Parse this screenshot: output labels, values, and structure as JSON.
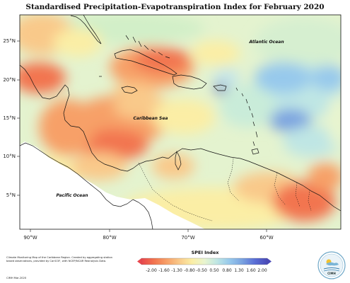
{
  "title": "Standardised Precipitation-Evapotranspiration Index for February 2020",
  "axes": {
    "lat_ticks": [
      "25°N",
      "20°N",
      "15°N",
      "10°N",
      "5°N"
    ],
    "lon_ticks": [
      "90°W",
      "80°W",
      "70°W",
      "60°W"
    ]
  },
  "labels": {
    "atlantic": "Atlantic Ocean",
    "caribbean": "Caribbean Sea",
    "pacific": "Pacific Ocean"
  },
  "legend": {
    "title": "SPEI Index",
    "ticks": [
      "-2.00",
      "-1.60",
      "-1.30",
      "-0.80",
      "-0.50",
      "0.50",
      "0.80",
      "1.30",
      "1.60",
      "2.00"
    ],
    "colors": [
      "#e8474e",
      "#f2744f",
      "#f7a068",
      "#f9c98a",
      "#fbeea5",
      "#e9f5cf",
      "#bfe6e4",
      "#97c9ec",
      "#7aa3e0",
      "#5a6fd6",
      "#4a4ab8"
    ]
  },
  "footnote": {
    "text": "Climate Monitoring Map of the Caribbean Region. Created by aggregating station based observations, provided by CariCOF, with NCEP/NCAR Reanalysis Data.",
    "date": "CIMH Mar-2020"
  },
  "logo": {
    "text": "CIMH"
  }
}
